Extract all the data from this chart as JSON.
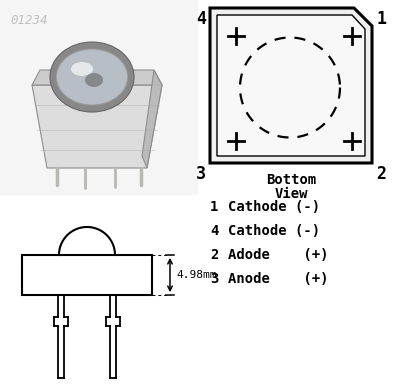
{
  "bg_color": "#ffffff",
  "watermark_text": "01234",
  "watermark_color": "#c0c0c0",
  "corner_label_1": "1",
  "corner_label_2": "2",
  "corner_label_3": "3",
  "corner_label_4": "4",
  "bottom_view_label_1": "Bottom",
  "bottom_view_label_2": "View",
  "dim_label": "4.98mm",
  "pin_labels": [
    [
      "1",
      "Cathode (-)"
    ],
    [
      "4",
      "Cathode (-)"
    ],
    [
      "2",
      "Adode    (+)"
    ],
    [
      "3",
      "Anode    (+)"
    ]
  ],
  "line_color": "#000000",
  "text_color": "#000000",
  "photo_bg": "#e0e0e0",
  "led_body_color": "#d8d8d8",
  "led_dome_color": "#c8c8c8",
  "led_highlight": "#ffffff",
  "pin_color": "#b8b8b0"
}
